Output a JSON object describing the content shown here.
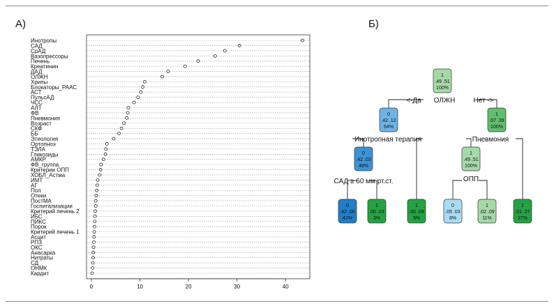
{
  "panel_a_label": "А)",
  "panel_b_label": "Б)",
  "chart_data": [
    {
      "type": "scatter",
      "title": "",
      "xlabel": "",
      "ylabel": "",
      "xlim": [
        -1,
        45
      ],
      "x_ticks": [
        0,
        10,
        20,
        30,
        40
      ],
      "grid": "horizontal dotted lines per variable",
      "point_color": "#222222",
      "variables": [
        "Инотропы",
        "САД",
        "СрАД",
        "Вазопрессоры",
        "Печень",
        "Креатинин",
        "ДАД",
        "ОЛЖН",
        "Хрипы",
        "Блокаторы_РААС",
        "АСТ",
        "ПульсАД",
        "ЧСС",
        "АЛТ",
        "ФВ",
        "Пневмония",
        "Возраст",
        "СКФ",
        "ББ",
        "Этиология",
        "Ортопноэ",
        "ТЭЛА",
        "Гликозиды",
        "АМКР",
        "ФВ_группа",
        "Критерии ОПП",
        "ХОБЛ_Астма",
        "ИМТ",
        "АГ",
        "Пол",
        "Отеки",
        "ПостМА",
        "Госпитализации",
        "Критерий печень 2",
        "ИБС",
        "ПИКС",
        "Порок",
        "Критерий печень 1",
        "Асцит",
        "РПЗ",
        "ОКС",
        "Анасарка",
        "Нитраты",
        "СД",
        "ОНМК",
        "Кардит"
      ],
      "values": [
        43.5,
        30.5,
        27.5,
        25.5,
        22.0,
        19.3,
        15.8,
        14.6,
        11.0,
        10.6,
        10.2,
        9.6,
        8.8,
        7.6,
        7.5,
        7.3,
        6.7,
        6.2,
        5.7,
        4.6,
        3.2,
        3.0,
        2.9,
        2.5,
        2.0,
        1.9,
        1.7,
        1.3,
        1.2,
        1.1,
        1.0,
        0.9,
        0.9,
        0.8,
        0.75,
        0.7,
        0.65,
        0.6,
        0.55,
        0.5,
        0.45,
        0.4,
        0.35,
        0.3,
        0.25,
        0.15
      ]
    },
    {
      "type": "decision-tree",
      "nodes": [
        {
          "id": "root",
          "cls": "1",
          "probs": ".49 .51",
          "pct": "100%",
          "fill": "#a6d9a8",
          "split": "ОЛЖН"
        },
        {
          "id": "n2",
          "cls": "0",
          "probs": ".42 .12",
          "pct": "54%",
          "fill": "#6fb2e6",
          "split": "Инотропная терапия"
        },
        {
          "id": "n3",
          "cls": "1",
          "probs": ".07 .39",
          "pct": "100%",
          "fill": "#62be6c",
          "split": "Пневмония"
        },
        {
          "id": "n4",
          "cls": "0",
          "probs": ".42 .03",
          "pct": "48%",
          "fill": "#3a94d6",
          "split": "САД ≥ 60 мм рт.ст."
        },
        {
          "id": "n5",
          "cls": "1",
          "probs": ".49 .51",
          "pct": "100%",
          "fill": "#a6d9a8",
          "split": "ОПП"
        },
        {
          "id": "l1",
          "cls": "0",
          "probs": ".42 .00",
          "pct": "42%",
          "fill": "#1f7fc8"
        },
        {
          "id": "l2",
          "cls": "1",
          "probs": ".00 .03",
          "pct": "3%",
          "fill": "#25a244"
        },
        {
          "id": "l3",
          "cls": "1",
          "probs": ".00 .09",
          "pct": "9%",
          "fill": "#25a244"
        },
        {
          "id": "l4",
          "cls": "0",
          "probs": ".05 .03",
          "pct": "8%",
          "fill": "#a9dcf3"
        },
        {
          "id": "l5",
          "cls": "1",
          "probs": ".02 .09",
          "pct": "11%",
          "fill": "#a6d9a8"
        },
        {
          "id": "l6",
          "cls": "1",
          "probs": ".01 .27",
          "pct": "27%",
          "fill": "#25a244"
        }
      ],
      "edge_labels": {
        "yes": "<-Да",
        "no": "Нет ->"
      }
    }
  ]
}
